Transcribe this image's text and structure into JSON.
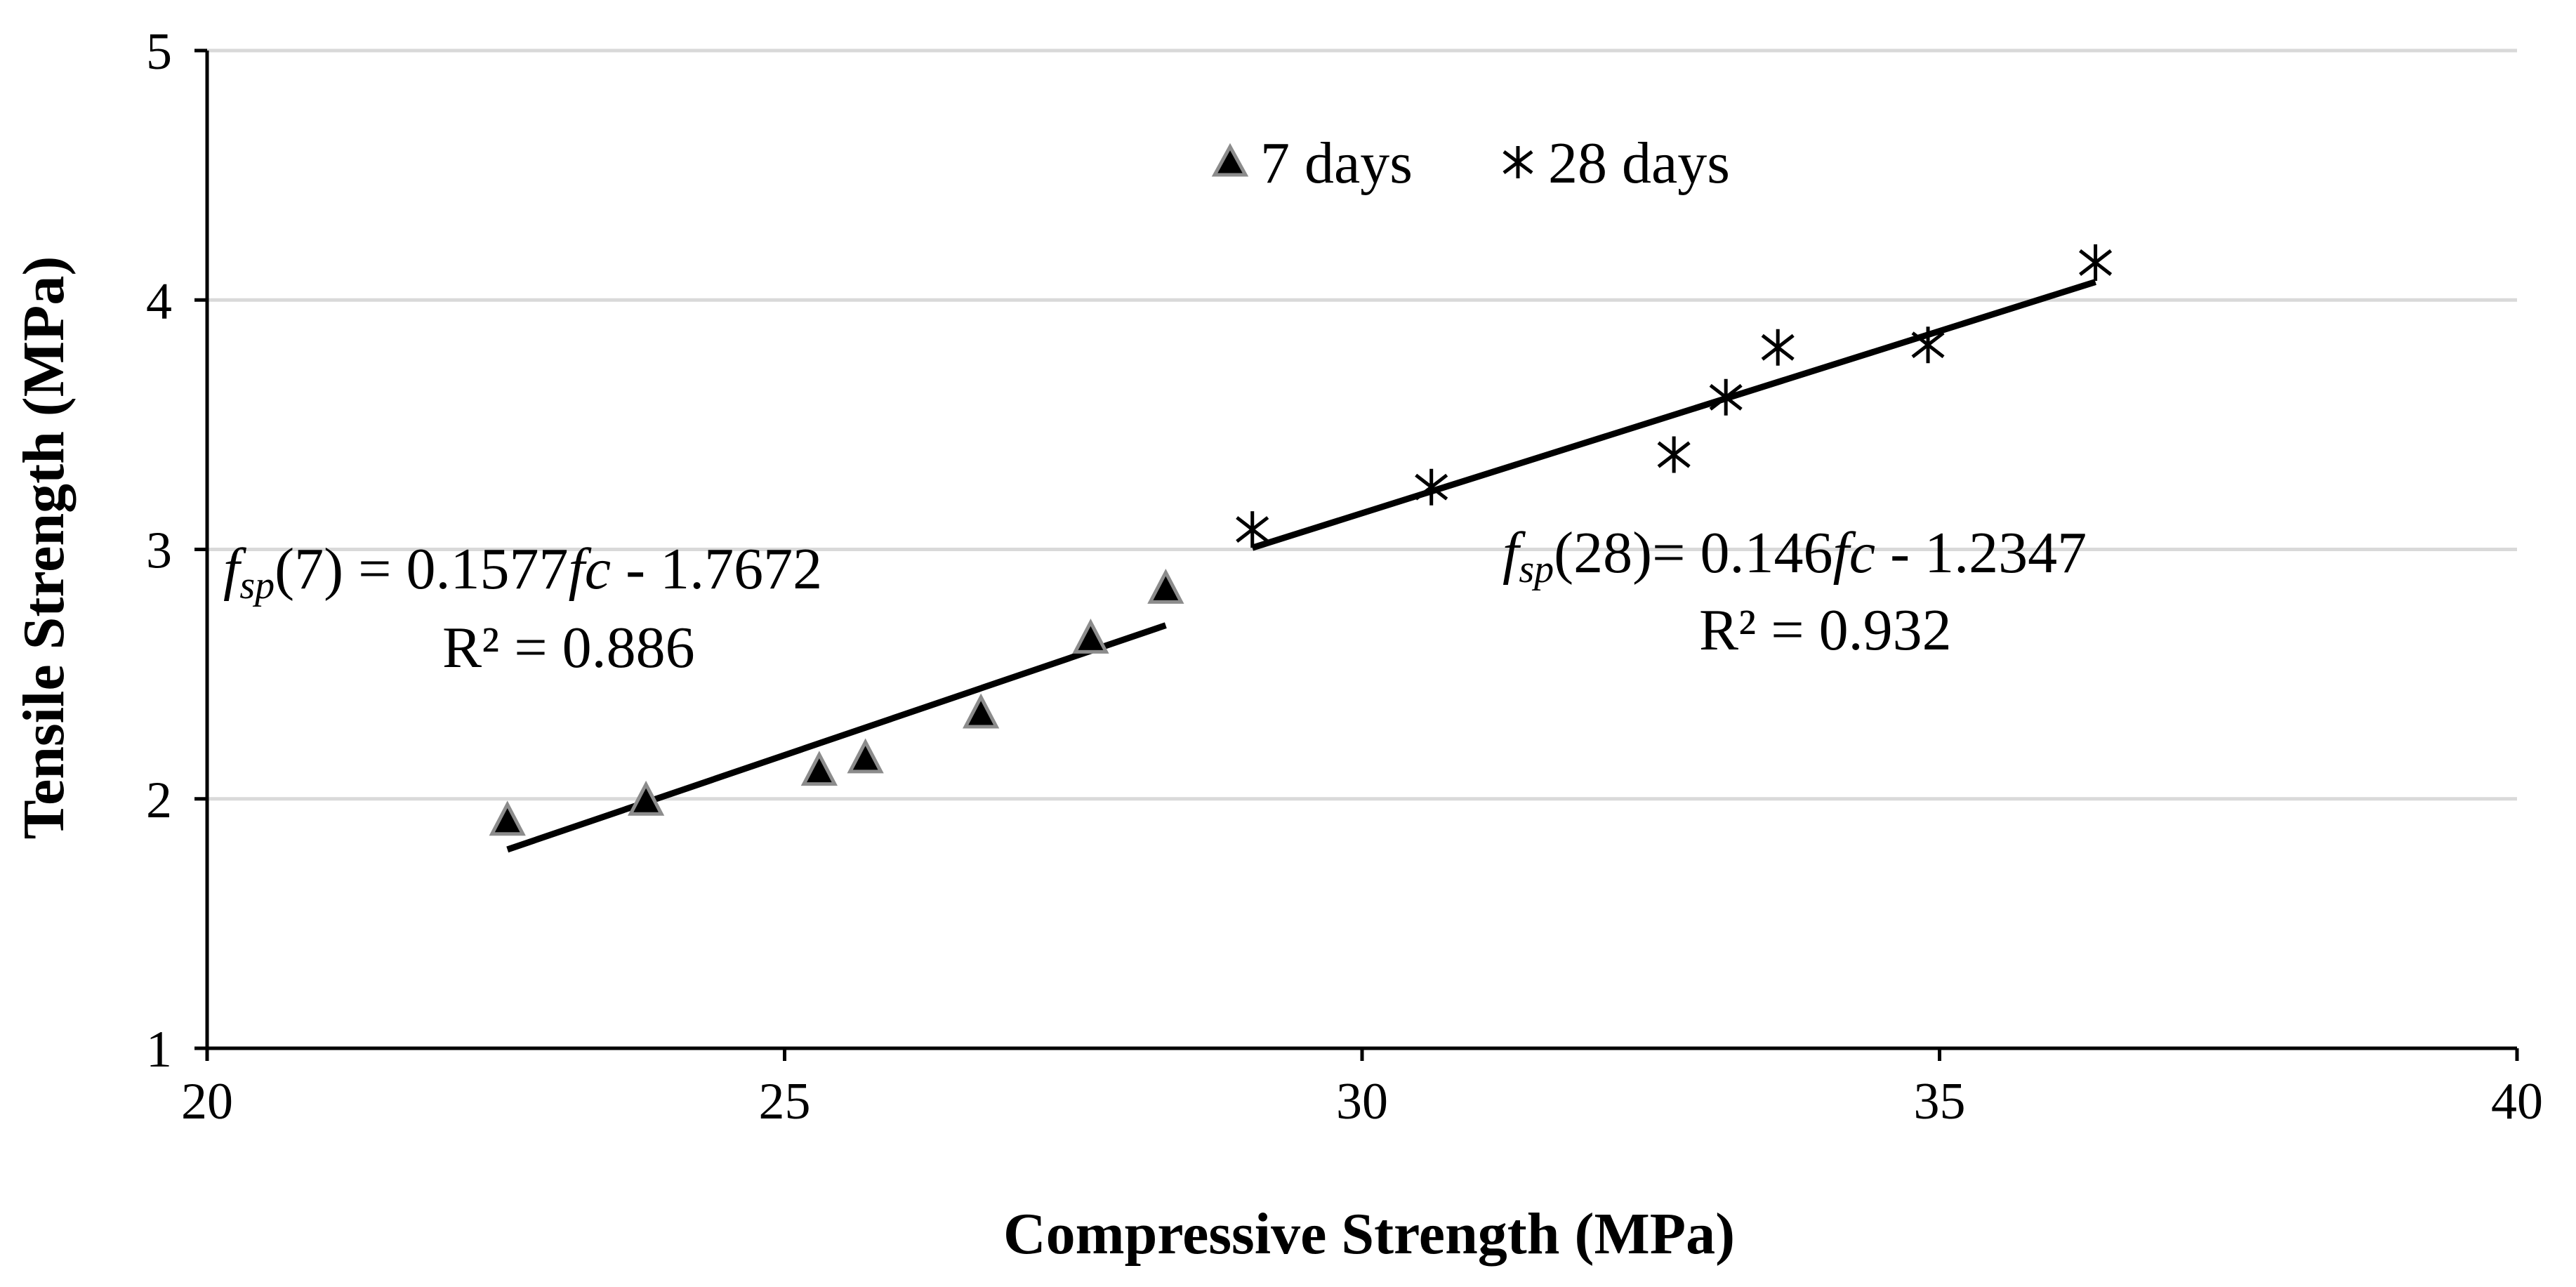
{
  "chart_data": {
    "type": "scatter",
    "title": "",
    "xlabel": "Compressive Strength (MPa)",
    "ylabel": "Tensile Strength (MPa)",
    "xlim": [
      20,
      40
    ],
    "ylim": [
      1,
      5
    ],
    "xticks": [
      20,
      25,
      30,
      35,
      40
    ],
    "yticks": [
      1,
      2,
      3,
      4,
      5
    ],
    "xtick_labels": [
      "20",
      "25",
      "30",
      "35",
      "40"
    ],
    "ytick_labels": [
      "1",
      "2",
      "3",
      "4",
      "5"
    ],
    "grid": "horizontal",
    "legend_position": "top-center",
    "series": [
      {
        "name": "7 days",
        "marker": "triangle",
        "x": [
          22.6,
          23.8,
          25.3,
          25.7,
          26.7,
          27.65,
          28.3
        ],
        "y": [
          1.91,
          1.99,
          2.11,
          2.16,
          2.34,
          2.64,
          2.84
        ],
        "trendline": {
          "slope": 0.1577,
          "intercept": -1.7672,
          "x_range": [
            22.6,
            28.3
          ],
          "equation_prefix": "f",
          "equation_sub": "sp",
          "equation_mid": "(7) = 0.1577",
          "equation_fc": "fc",
          "equation_suffix": " - 1.7672",
          "r2_label": "R² = 0.886"
        }
      },
      {
        "name": "28 days",
        "marker": "asterisk",
        "x": [
          29.05,
          30.6,
          32.7,
          33.15,
          33.6,
          34.9,
          36.35
        ],
        "y": [
          3.08,
          3.25,
          3.38,
          3.61,
          3.81,
          3.82,
          4.15
        ],
        "trendline": {
          "slope": 0.146,
          "intercept": -1.2347,
          "x_range": [
            29.05,
            36.35
          ],
          "equation_prefix": "f",
          "equation_sub": "sp",
          "equation_mid": "(28)= 0.146",
          "equation_fc": "fc",
          "equation_suffix": " - 1.2347",
          "r2_label": "R² = 0.932"
        }
      }
    ]
  }
}
